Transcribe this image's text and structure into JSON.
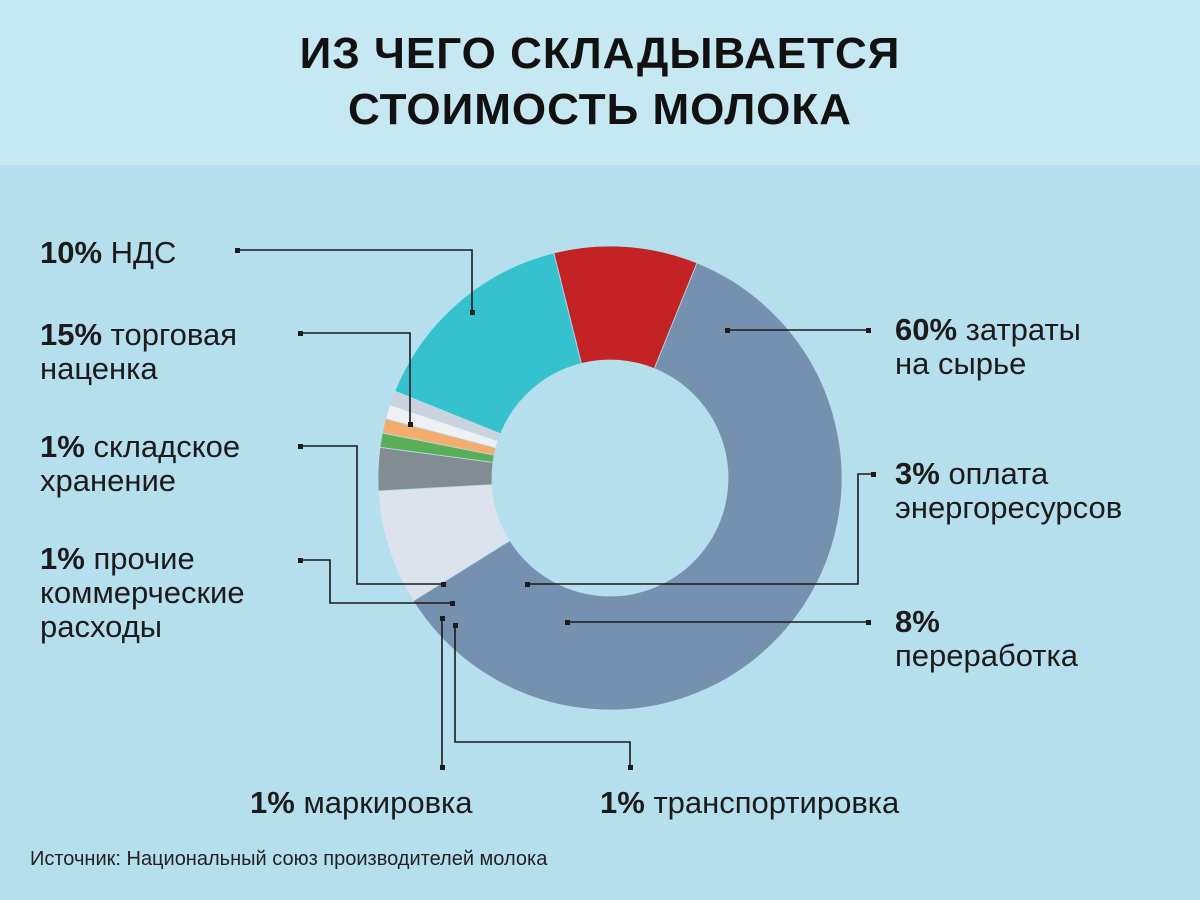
{
  "title": {
    "line1": "ИЗ ЧЕГО СКЛАДЫВАЕТСЯ",
    "line2": "СТОИМОСТЬ МОЛОКА"
  },
  "source": "Источник: Национальный союз производителей молока",
  "chart_data": {
    "type": "pie",
    "donut": true,
    "slices": [
      {
        "label": "затраты на сырье",
        "value_label": "60%",
        "value": 60,
        "color": "#7690b0"
      },
      {
        "label": "переработка",
        "value_label": "8%",
        "value": 8,
        "color": "#dde3ec"
      },
      {
        "label": "оплата энергоресурсов",
        "value_label": "3%",
        "value": 3,
        "color": "#828c93"
      },
      {
        "label": "транспортировка",
        "value_label": "1%",
        "value": 1,
        "color": "#5aae58"
      },
      {
        "label": "маркировка",
        "value_label": "1%",
        "value": 1,
        "color": "#f2ac6c"
      },
      {
        "label": "прочие коммерческие расходы",
        "value_label": "1%",
        "value": 1,
        "color": "#eef0f4"
      },
      {
        "label": "складское хранение",
        "value_label": "1%",
        "value": 1,
        "color": "#cad3dd"
      },
      {
        "label": "торговая наценка",
        "value_label": "15%",
        "value": 15,
        "color": "#36c1cf"
      },
      {
        "label": "НДС",
        "value_label": "10%",
        "value": 10,
        "color": "#c32325"
      }
    ],
    "labels": {
      "nds": {
        "pct": "10%",
        "line1": "НДС"
      },
      "markup": {
        "pct": "15%",
        "line1": "торговая",
        "line2": "наценка"
      },
      "storage": {
        "pct": "1%",
        "line1": "складское",
        "line2": "хранение"
      },
      "other": {
        "pct": "1%",
        "line1": "прочие",
        "line2": "коммерческие",
        "line3": "расходы"
      },
      "raw": {
        "pct": "60%",
        "line1": "затраты",
        "line2": "на сырье"
      },
      "energy": {
        "pct": "3%",
        "line1": "оплата",
        "line2": "энергоресурсов"
      },
      "process": {
        "pct": "8%",
        "line2": "переработка"
      },
      "marking": {
        "pct": "1%",
        "line1": "маркировка"
      },
      "transport": {
        "pct": "1%",
        "line1": "транспортировка"
      }
    }
  }
}
